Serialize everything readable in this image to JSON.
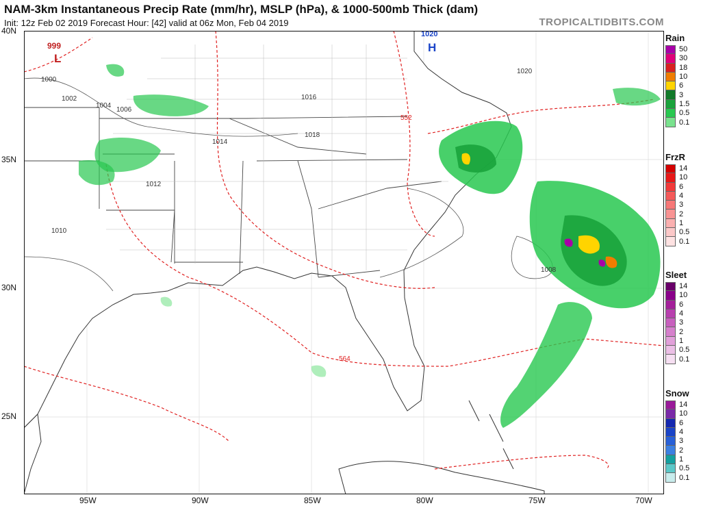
{
  "header": {
    "title": "NAM-3km Instantaneous Precip Rate (mm/hr), MSLP (hPa), & 1000-500mb Thick (dam)",
    "subtitle": "Init: 12z Feb 02 2019   Forecast Hour: [42]   valid at 06z Mon, Feb 04 2019",
    "brand": "TROPICALTIDBITS.COM"
  },
  "axes": {
    "lat_labels": [
      "40N",
      "35N",
      "30N",
      "25N"
    ],
    "lon_labels": [
      "95W",
      "90W",
      "85W",
      "80W",
      "75W",
      "70W"
    ]
  },
  "map_labels": {
    "pressure_centers": [
      {
        "kind": "L",
        "value": "999"
      },
      {
        "kind": "H",
        "value": "1020"
      }
    ],
    "isobars": [
      "1000",
      "1002",
      "1004",
      "1006",
      "1008",
      "1010",
      "1012",
      "1014",
      "1016",
      "1018",
      "1020"
    ],
    "thickness": [
      "552",
      "564"
    ]
  },
  "legend": [
    {
      "title": "Rain",
      "entries": [
        {
          "label": "50",
          "color": "#a800a8"
        },
        {
          "label": "30",
          "color": "#e0007a"
        },
        {
          "label": "18",
          "color": "#d92020"
        },
        {
          "label": "10",
          "color": "#f07d00"
        },
        {
          "label": "6",
          "color": "#ffd400"
        },
        {
          "label": "3",
          "color": "#127a2a"
        },
        {
          "label": "1.5",
          "color": "#1aa33c"
        },
        {
          "label": "0.5",
          "color": "#28c850"
        },
        {
          "label": "0.1",
          "color": "#7ae28e"
        }
      ]
    },
    {
      "title": "FrzR",
      "entries": [
        {
          "label": "14",
          "color": "#d40000"
        },
        {
          "label": "10",
          "color": "#e81818"
        },
        {
          "label": "6",
          "color": "#f23a3a"
        },
        {
          "label": "4",
          "color": "#f55a5a"
        },
        {
          "label": "3",
          "color": "#f77878"
        },
        {
          "label": "2",
          "color": "#f99494"
        },
        {
          "label": "1",
          "color": "#fbb0b0"
        },
        {
          "label": "0.5",
          "color": "#fcc8c8"
        },
        {
          "label": "0.1",
          "color": "#fee2e2"
        }
      ]
    },
    {
      "title": "Sleet",
      "entries": [
        {
          "label": "14",
          "color": "#6a006a"
        },
        {
          "label": "10",
          "color": "#8a008a"
        },
        {
          "label": "6",
          "color": "#a4209a"
        },
        {
          "label": "4",
          "color": "#b840ae"
        },
        {
          "label": "3",
          "color": "#c860be"
        },
        {
          "label": "2",
          "color": "#d680cc"
        },
        {
          "label": "1",
          "color": "#e2a0da"
        },
        {
          "label": "0.5",
          "color": "#ecbfe6"
        },
        {
          "label": "0.1",
          "color": "#f6dff2"
        }
      ]
    },
    {
      "title": "Snow",
      "entries": [
        {
          "label": "14",
          "color": "#9a1a9a"
        },
        {
          "label": "10",
          "color": "#7a2aa8"
        },
        {
          "label": "6",
          "color": "#1428b0"
        },
        {
          "label": "4",
          "color": "#1a44c8"
        },
        {
          "label": "3",
          "color": "#2860d8"
        },
        {
          "label": "2",
          "color": "#3c80e2"
        },
        {
          "label": "1",
          "color": "#14a0a0"
        },
        {
          "label": "0.5",
          "color": "#5cc8c8"
        },
        {
          "label": "0.1",
          "color": "#c8ecec"
        }
      ]
    }
  ]
}
